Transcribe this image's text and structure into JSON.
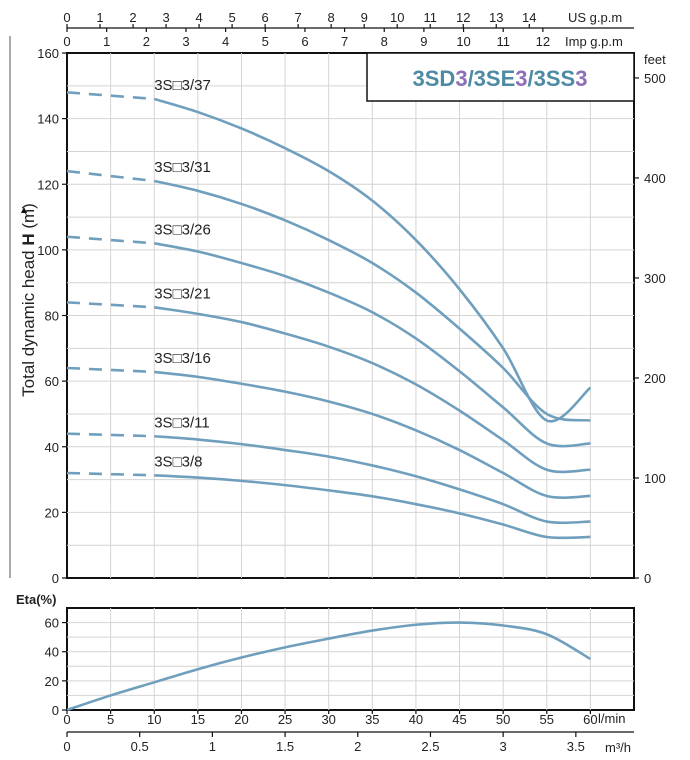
{
  "chart_data": [
    {
      "type": "line",
      "title": "3SD3/3SE3/3SS3",
      "title_parts": [
        {
          "text": "3SD",
          "color": "#4e8aa3"
        },
        {
          "text": "3",
          "color": "#8d6fb8"
        },
        {
          "text": "/3SE",
          "color": "#4e8aa3"
        },
        {
          "text": "3",
          "color": "#8d6fb8"
        },
        {
          "text": "/3SS",
          "color": "#4e8aa3"
        },
        {
          "text": "3",
          "color": "#8d6fb8"
        }
      ],
      "ylabel": "Total dynamic head H (m)",
      "ylim": [
        0,
        160
      ],
      "yticks": [
        0,
        20,
        40,
        60,
        80,
        100,
        120,
        140,
        160
      ],
      "y2label": "feet",
      "y2ticks": [
        0,
        100,
        200,
        300,
        400,
        500
      ],
      "xlim": [
        0,
        65
      ],
      "top_axis_us": {
        "label": "US g.p.m",
        "ticks": [
          "0",
          "1",
          "2",
          "3",
          "4",
          "5",
          "6",
          "7",
          "8",
          "9",
          "10",
          "11",
          "12",
          "13",
          "14"
        ]
      },
      "top_axis_imp": {
        "label": "Imp g.p.m",
        "ticks": [
          "0",
          "1",
          "2",
          "3",
          "4",
          "5",
          "6",
          "7",
          "8",
          "9",
          "10",
          "11",
          "12"
        ]
      },
      "grid": true,
      "curve_color": "#6f9fbd",
      "series": [
        {
          "name": "3S□3/37",
          "x": [
            0,
            10,
            15,
            20,
            25,
            30,
            35,
            40,
            45,
            50,
            55,
            60
          ],
          "y": [
            148,
            146,
            142,
            137,
            131,
            124,
            115,
            103,
            88,
            70,
            48,
            58
          ]
        },
        {
          "name": "3S□3/31",
          "x": [
            0,
            10,
            15,
            20,
            25,
            30,
            35,
            40,
            45,
            50,
            55,
            60
          ],
          "y": [
            124,
            121,
            118,
            114,
            109,
            103,
            96,
            87,
            76,
            64,
            50,
            48
          ]
        },
        {
          "name": "3S□3/26",
          "x": [
            0,
            10,
            15,
            20,
            25,
            30,
            35,
            40,
            45,
            50,
            55,
            60
          ],
          "y": [
            104,
            102,
            99.5,
            96,
            92,
            87,
            81,
            73,
            63,
            52,
            41,
            41
          ]
        },
        {
          "name": "3S□3/21",
          "x": [
            0,
            10,
            15,
            20,
            25,
            30,
            35,
            40,
            45,
            50,
            55,
            60
          ],
          "y": [
            84,
            82.5,
            80.5,
            78,
            74.5,
            70.5,
            65.5,
            59,
            51,
            42,
            33,
            33
          ]
        },
        {
          "name": "3S□3/16",
          "x": [
            0,
            10,
            15,
            20,
            25,
            30,
            35,
            40,
            45,
            50,
            55,
            60
          ],
          "y": [
            64,
            62.8,
            61.3,
            59.2,
            56.8,
            53.8,
            50,
            45,
            39,
            32,
            25,
            25
          ]
        },
        {
          "name": "3S□3/11",
          "x": [
            0,
            10,
            15,
            20,
            25,
            30,
            35,
            40,
            45,
            50,
            55,
            60
          ],
          "y": [
            44,
            43.2,
            42.2,
            40.8,
            39,
            37,
            34.3,
            31,
            27,
            22.5,
            17.2,
            17.2
          ]
        },
        {
          "name": "3S□3/8",
          "x": [
            0,
            10,
            15,
            20,
            25,
            30,
            35,
            40,
            45,
            50,
            55,
            60
          ],
          "y": [
            32,
            31.3,
            30.6,
            29.6,
            28.3,
            26.7,
            24.9,
            22.5,
            19.7,
            16.3,
            12.5,
            12.5
          ]
        }
      ],
      "dashed_until_x": 10
    },
    {
      "type": "line",
      "ylabel": "Eta(%)",
      "ylim": [
        0,
        70
      ],
      "yticks": [
        0,
        20,
        40,
        60
      ],
      "xlim": [
        0,
        65
      ],
      "xticks": [
        0,
        5,
        10,
        15,
        20,
        25,
        30,
        35,
        40,
        45,
        50,
        55,
        60
      ],
      "xunit": "l/min",
      "x2ticks": [
        "0",
        "0.5",
        "1",
        "1.5",
        "2",
        "2.5",
        "3",
        "3.5"
      ],
      "x2unit": "m³/h",
      "grid": true,
      "series": [
        {
          "x": [
            0,
            5,
            10,
            15,
            20,
            25,
            30,
            35,
            40,
            45,
            50,
            55,
            60
          ],
          "y": [
            0,
            10,
            19,
            28,
            36,
            43,
            49,
            54.5,
            58.5,
            60,
            58,
            52,
            35
          ]
        }
      ]
    }
  ]
}
